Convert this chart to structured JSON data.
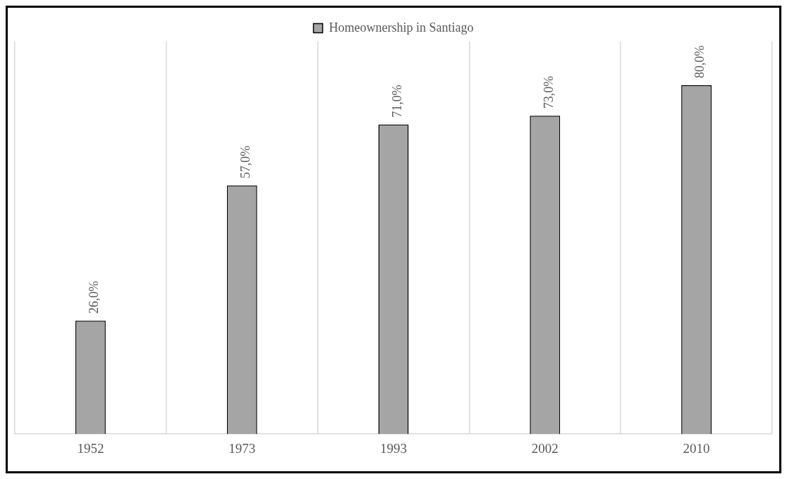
{
  "chart_data": {
    "type": "bar",
    "categories": [
      "1952",
      "1973",
      "1993",
      "2002",
      "2010"
    ],
    "series": [
      {
        "name": "Homeownership in Santiago",
        "color": "#a5a5a5",
        "values": [
          26,
          57,
          71,
          73,
          80
        ],
        "value_labels": [
          "26,0%",
          "57,0%",
          "71,0%",
          "73,0%",
          "80,0%"
        ]
      }
    ],
    "grid": "x",
    "legend": "top"
  }
}
